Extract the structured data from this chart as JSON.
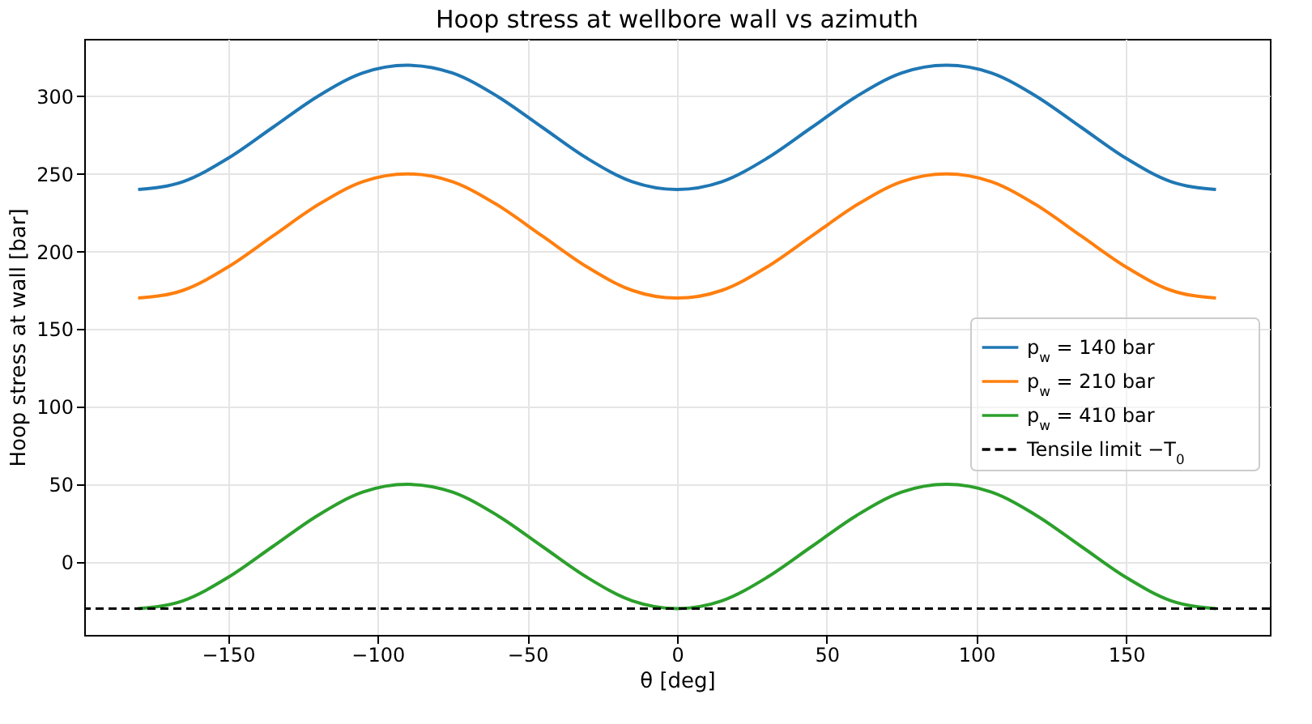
{
  "chart_data": {
    "type": "line",
    "title": "Hoop stress at wellbore wall vs azimuth",
    "xlabel": "θ [deg]",
    "ylabel": "Hoop stress at wall [bar]",
    "x": [
      -180,
      -165,
      -150,
      -135,
      -120,
      -105,
      -90,
      -75,
      -60,
      -45,
      -30,
      -15,
      0,
      15,
      30,
      45,
      60,
      75,
      90,
      105,
      120,
      135,
      150,
      165,
      180
    ],
    "series": [
      {
        "name": "p$_{w}$ = 140 bar",
        "color": "#1f77b4",
        "values": [
          240,
          245,
          260,
          280,
          300,
          315,
          320,
          315,
          300,
          280,
          260,
          245,
          240,
          245,
          260,
          280,
          300,
          315,
          320,
          315,
          300,
          280,
          260,
          245,
          240
        ]
      },
      {
        "name": "p$_{w}$ = 210 bar",
        "color": "#ff7f0e",
        "values": [
          170,
          175,
          190,
          210,
          230,
          245,
          250,
          245,
          230,
          210,
          190,
          175,
          170,
          175,
          190,
          210,
          230,
          245,
          250,
          245,
          230,
          210,
          190,
          175,
          170
        ]
      },
      {
        "name": "p$_{w}$ = 410 bar",
        "color": "#2ca02c",
        "values": [
          -30,
          -25,
          -10,
          10,
          30,
          45,
          50,
          45,
          30,
          10,
          -10,
          -25,
          -30,
          -25,
          -10,
          10,
          30,
          45,
          50,
          45,
          30,
          10,
          -10,
          -25,
          -30
        ]
      }
    ],
    "ref_lines": [
      {
        "axis": "y",
        "value": -30,
        "label": "Tensile limit −T$_{0}$",
        "color": "#000000",
        "line_style": "dashed"
      }
    ],
    "xlim": [
      -198,
      198
    ],
    "xticks": [
      -150,
      -100,
      -50,
      0,
      50,
      100,
      150
    ],
    "ylim": [
      -47,
      337
    ],
    "yticks": [
      0,
      50,
      100,
      150,
      200,
      250,
      300
    ],
    "grid": true,
    "legend": "right",
    "line_style": "solid",
    "marker": "none"
  }
}
